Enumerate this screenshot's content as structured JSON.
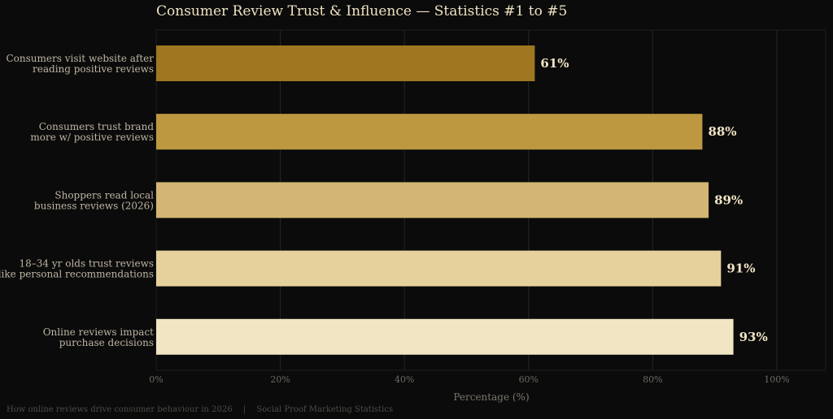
{
  "chart_data": {
    "type": "bar",
    "orientation": "horizontal",
    "title": "Consumer Review Trust & Influence — Statistics #1 to #5",
    "xlabel": "Percentage (%)",
    "ylabel": "",
    "xlim": [
      0,
      108
    ],
    "x_ticks": [
      0,
      20,
      40,
      60,
      80,
      100
    ],
    "x_tick_labels": [
      "0%",
      "20%",
      "40%",
      "60%",
      "80%",
      "100%"
    ],
    "grid": true,
    "legend": "none",
    "categories": [
      [
        "Consumers visit website after",
        "reading positive reviews"
      ],
      [
        "Consumers trust brand",
        "more w/ positive reviews"
      ],
      [
        "Shoppers read local",
        "business reviews (2026)"
      ],
      [
        "18–34 yr olds trust reviews",
        "like personal recommendations"
      ],
      [
        "Online reviews impact",
        "purchase decisions"
      ]
    ],
    "values": [
      61,
      88,
      89,
      91,
      93
    ],
    "value_labels": [
      "61%",
      "88%",
      "89%",
      "91%",
      "93%"
    ],
    "colors": [
      "#9e7720",
      "#bd9840",
      "#d3b673",
      "#e6d19c",
      "#f1e5c4"
    ]
  },
  "footer": {
    "left": "How online reviews drive consumer behaviour in 2026",
    "separator": "|",
    "right": "Social Proof Marketing Statistics"
  }
}
